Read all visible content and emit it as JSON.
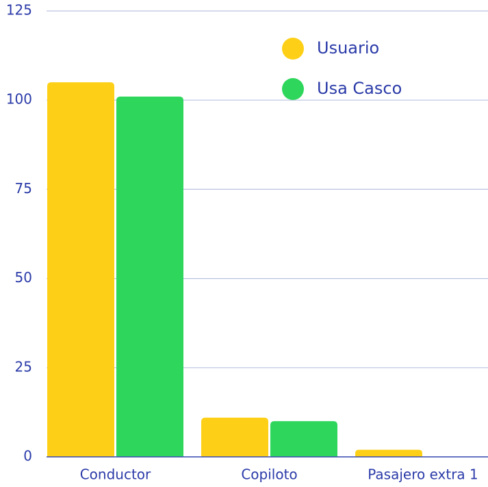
{
  "chart_data": {
    "type": "bar",
    "categories": [
      "Conductor",
      "Copiloto",
      "Pasajero extra 1"
    ],
    "series": [
      {
        "name": "Usuario",
        "color": "#fdd017",
        "values": [
          105,
          11,
          2
        ]
      },
      {
        "name": "Usa Casco",
        "color": "#2ed65c",
        "values": [
          101,
          10,
          0
        ]
      }
    ],
    "ylim": [
      0,
      125
    ],
    "yticks": [
      0,
      25,
      50,
      75,
      100,
      125
    ],
    "grid": true,
    "legend": "top-right"
  }
}
